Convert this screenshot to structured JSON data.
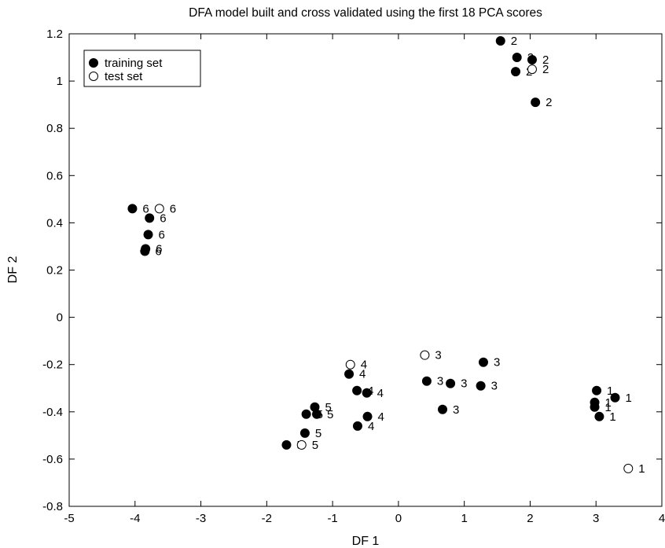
{
  "chart_data": {
    "type": "scatter",
    "title": "DFA model built and cross validated using the first 18 PCA scores",
    "xlabel": "DF 1",
    "ylabel": "DF 2",
    "xlim": [
      -5,
      4
    ],
    "ylim": [
      -0.8,
      1.2
    ],
    "xticks": [
      "-5",
      "-4",
      "-3",
      "-2",
      "-1",
      "0",
      "1",
      "2",
      "3",
      "4"
    ],
    "yticks": [
      "-0.8",
      "-0.6",
      "-0.4",
      "-0.2",
      "0",
      "0.2",
      "0.4",
      "0.6",
      "0.8",
      "1",
      "1.2"
    ],
    "grid": false,
    "legend": "top-left",
    "series": [
      {
        "name": "training set",
        "marker": "filled-circle",
        "points": [
          {
            "x": 1.55,
            "y": 1.17,
            "label": "2"
          },
          {
            "x": 1.8,
            "y": 1.1,
            "label": "2"
          },
          {
            "x": 2.03,
            "y": 1.09,
            "label": "2"
          },
          {
            "x": 1.78,
            "y": 1.04,
            "label": "2"
          },
          {
            "x": 2.08,
            "y": 0.91,
            "label": "2"
          },
          {
            "x": -4.04,
            "y": 0.46,
            "label": "6"
          },
          {
            "x": -3.78,
            "y": 0.42,
            "label": "6"
          },
          {
            "x": -3.8,
            "y": 0.35,
            "label": "6"
          },
          {
            "x": -3.84,
            "y": 0.29,
            "label": "6"
          },
          {
            "x": -3.85,
            "y": 0.28,
            "label": "6"
          },
          {
            "x": 1.29,
            "y": -0.19,
            "label": "3"
          },
          {
            "x": 0.43,
            "y": -0.27,
            "label": "3"
          },
          {
            "x": 0.79,
            "y": -0.28,
            "label": "3"
          },
          {
            "x": 1.25,
            "y": -0.29,
            "label": "3"
          },
          {
            "x": 0.67,
            "y": -0.39,
            "label": "3"
          },
          {
            "x": -0.75,
            "y": -0.24,
            "label": "4"
          },
          {
            "x": -0.63,
            "y": -0.31,
            "label": "4"
          },
          {
            "x": -0.48,
            "y": -0.32,
            "label": "4"
          },
          {
            "x": -0.47,
            "y": -0.42,
            "label": "4"
          },
          {
            "x": -0.62,
            "y": -0.46,
            "label": "4"
          },
          {
            "x": -1.27,
            "y": -0.38,
            "label": "5"
          },
          {
            "x": -1.4,
            "y": -0.41,
            "label": "5"
          },
          {
            "x": -1.24,
            "y": -0.41,
            "label": "5"
          },
          {
            "x": -1.42,
            "y": -0.49,
            "label": "5"
          },
          {
            "x": -1.7,
            "y": -0.54,
            "label": "5"
          },
          {
            "x": 3.01,
            "y": -0.31,
            "label": "1"
          },
          {
            "x": 3.29,
            "y": -0.34,
            "label": "1"
          },
          {
            "x": 2.98,
            "y": -0.36,
            "label": "1"
          },
          {
            "x": 2.98,
            "y": -0.38,
            "label": "1"
          },
          {
            "x": 3.05,
            "y": -0.42,
            "label": "1"
          }
        ]
      },
      {
        "name": "test set",
        "marker": "open-circle",
        "points": [
          {
            "x": 2.03,
            "y": 1.05,
            "label": "2"
          },
          {
            "x": -3.63,
            "y": 0.46,
            "label": "6"
          },
          {
            "x": 0.4,
            "y": -0.16,
            "label": "3"
          },
          {
            "x": -0.73,
            "y": -0.2,
            "label": "4"
          },
          {
            "x": -1.47,
            "y": -0.54,
            "label": "5"
          },
          {
            "x": 3.49,
            "y": -0.64,
            "label": "1"
          }
        ]
      }
    ]
  }
}
